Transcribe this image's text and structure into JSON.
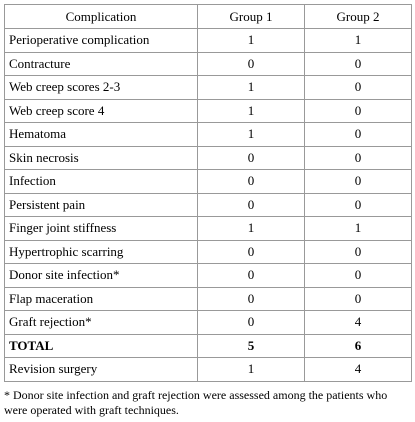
{
  "table": {
    "header": [
      "Complication",
      "Group 1",
      "Group 2"
    ],
    "rows": [
      [
        "Perioperative complication",
        1,
        1
      ],
      [
        "Contracture",
        0,
        0
      ],
      [
        "Web creep scores 2-3",
        1,
        0
      ],
      [
        "Web creep score 4",
        1,
        0
      ],
      [
        "Hematoma",
        1,
        0
      ],
      [
        "Skin necrosis",
        0,
        0
      ],
      [
        "Infection",
        0,
        0
      ],
      [
        "Persistent pain",
        0,
        0
      ],
      [
        "Finger joint stiffness",
        1,
        1
      ],
      [
        "Hypertrophic scarring",
        0,
        0
      ],
      [
        "Donor site infection*",
        0,
        0
      ],
      [
        "Flap maceration",
        0,
        0
      ],
      [
        "Graft rejection*",
        0,
        4
      ],
      [
        "TOTAL",
        5,
        6
      ],
      [
        "Revision surgery",
        1,
        4
      ]
    ],
    "footnote": "* Donor site infection and graft rejection were assessed among the patients who were operated with graft techniques."
  }
}
